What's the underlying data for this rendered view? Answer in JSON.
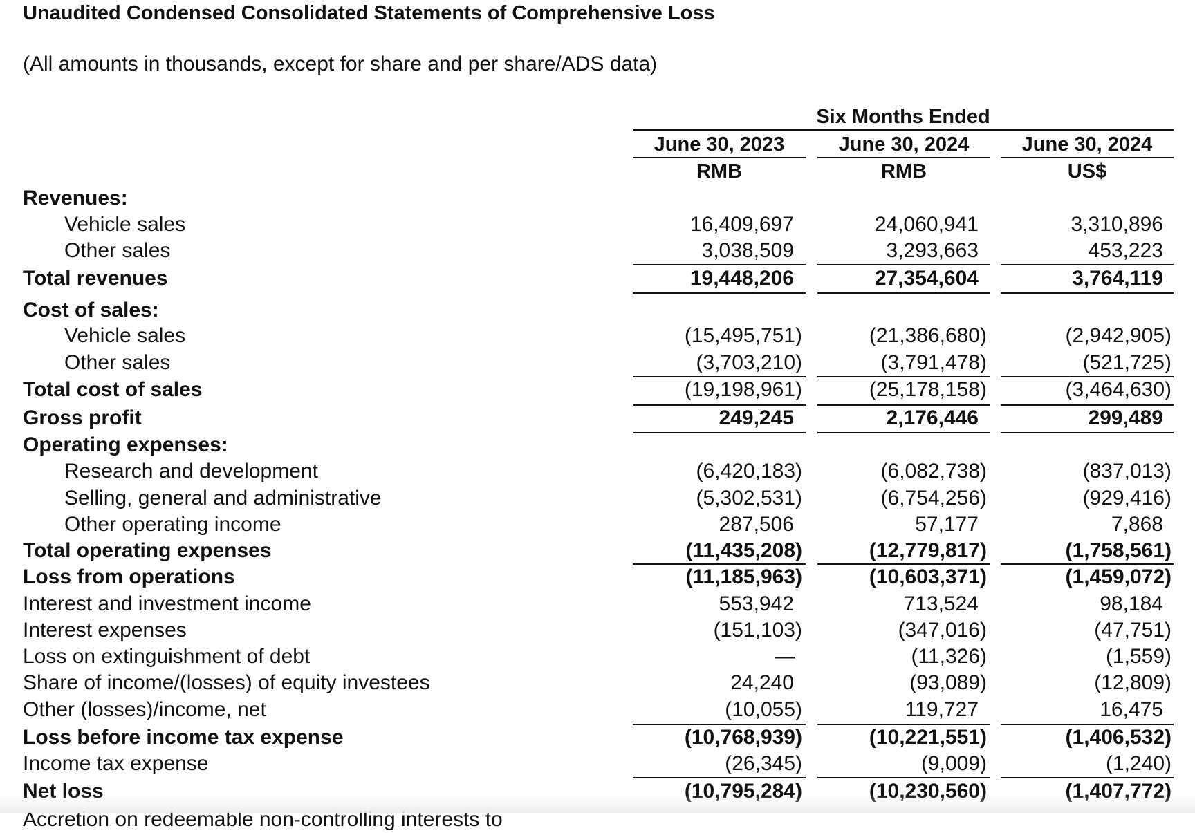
{
  "title": "Unaudited Condensed Consolidated Statements of Comprehensive Loss",
  "subtitle": "(All amounts in thousands, except for share and per share/ADS data)",
  "header": {
    "period": "Six Months Ended",
    "columns": [
      {
        "date": "June 30, 2023",
        "currency": "RMB"
      },
      {
        "date": "June 30, 2024",
        "currency": "RMB"
      },
      {
        "date": "June 30, 2024",
        "currency": "US$"
      }
    ]
  },
  "rows": [
    {
      "label": "Revenues:",
      "bold": true,
      "indent": false,
      "values": []
    },
    {
      "label": "Vehicle sales",
      "bold": false,
      "indent": true,
      "values": [
        "16,409,697",
        "24,060,941",
        "3,310,896"
      ]
    },
    {
      "label": "Other sales",
      "bold": false,
      "indent": true,
      "values": [
        "3,038,509",
        "3,293,663",
        "453,223"
      ]
    },
    {
      "label": "Total revenues",
      "bold": true,
      "indent": false,
      "values": [
        "19,448,206",
        "27,354,604",
        "3,764,119"
      ]
    },
    {
      "label": "Cost of sales:",
      "bold": true,
      "indent": false,
      "values": []
    },
    {
      "label": "Vehicle sales",
      "bold": false,
      "indent": true,
      "values": [
        "(15,495,751)",
        "(21,386,680)",
        "(2,942,905)"
      ]
    },
    {
      "label": "Other sales",
      "bold": false,
      "indent": true,
      "values": [
        "(3,703,210)",
        "(3,791,478)",
        "(521,725)"
      ]
    },
    {
      "label": "Total cost of sales",
      "bold": true,
      "indent": false,
      "values_bold": false,
      "values": [
        "(19,198,961)",
        "(25,178,158)",
        "(3,464,630)"
      ]
    },
    {
      "label": "Gross profit",
      "bold": true,
      "indent": false,
      "values": [
        "249,245",
        "2,176,446",
        "299,489"
      ]
    },
    {
      "label": "Operating expenses:",
      "bold": true,
      "indent": false,
      "values": []
    },
    {
      "label": "Research and development",
      "bold": false,
      "indent": true,
      "values": [
        "(6,420,183)",
        "(6,082,738)",
        "(837,013)"
      ]
    },
    {
      "label": "Selling, general and administrative",
      "bold": false,
      "indent": true,
      "values": [
        "(5,302,531)",
        "(6,754,256)",
        "(929,416)"
      ]
    },
    {
      "label": "Other operating income",
      "bold": false,
      "indent": true,
      "values": [
        "287,506",
        "57,177",
        "7,868"
      ]
    },
    {
      "label": "Total operating expenses",
      "bold": true,
      "indent": false,
      "values": [
        "(11,435,208)",
        "(12,779,817)",
        "(1,758,561)"
      ]
    },
    {
      "label": "Loss from operations",
      "bold": true,
      "indent": false,
      "values": [
        "(11,185,963)",
        "(10,603,371)",
        "(1,459,072)"
      ]
    },
    {
      "label": "Interest and investment income",
      "bold": false,
      "indent": false,
      "values": [
        "553,942",
        "713,524",
        "98,184"
      ]
    },
    {
      "label": "Interest expenses",
      "bold": false,
      "indent": false,
      "values": [
        "(151,103)",
        "(347,016)",
        "(47,751)"
      ]
    },
    {
      "label": "Loss on extinguishment of debt",
      "bold": false,
      "indent": false,
      "values": [
        "—",
        "(11,326)",
        "(1,559)"
      ]
    },
    {
      "label": "Share of income/(losses) of equity investees",
      "bold": false,
      "indent": false,
      "values": [
        "24,240",
        "(93,089)",
        "(12,809)"
      ]
    },
    {
      "label": "Other (losses)/income, net",
      "bold": false,
      "indent": false,
      "values": [
        "(10,055)",
        "119,727",
        "16,475"
      ]
    },
    {
      "label": "Loss before income tax expense",
      "bold": true,
      "indent": false,
      "values": [
        "(10,768,939)",
        "(10,221,551)",
        "(1,406,532)"
      ]
    },
    {
      "label": "Income tax expense",
      "bold": false,
      "indent": false,
      "values": [
        "(26,345)",
        "(9,009)",
        "(1,240)"
      ]
    },
    {
      "label": "Net loss",
      "bold": true,
      "indent": false,
      "values": [
        "(10,795,284)",
        "(10,230,560)",
        "(1,407,772)"
      ]
    },
    {
      "label": "Accretion on redeemable non-controlling interests to",
      "bold": false,
      "indent": false,
      "values": []
    }
  ]
}
